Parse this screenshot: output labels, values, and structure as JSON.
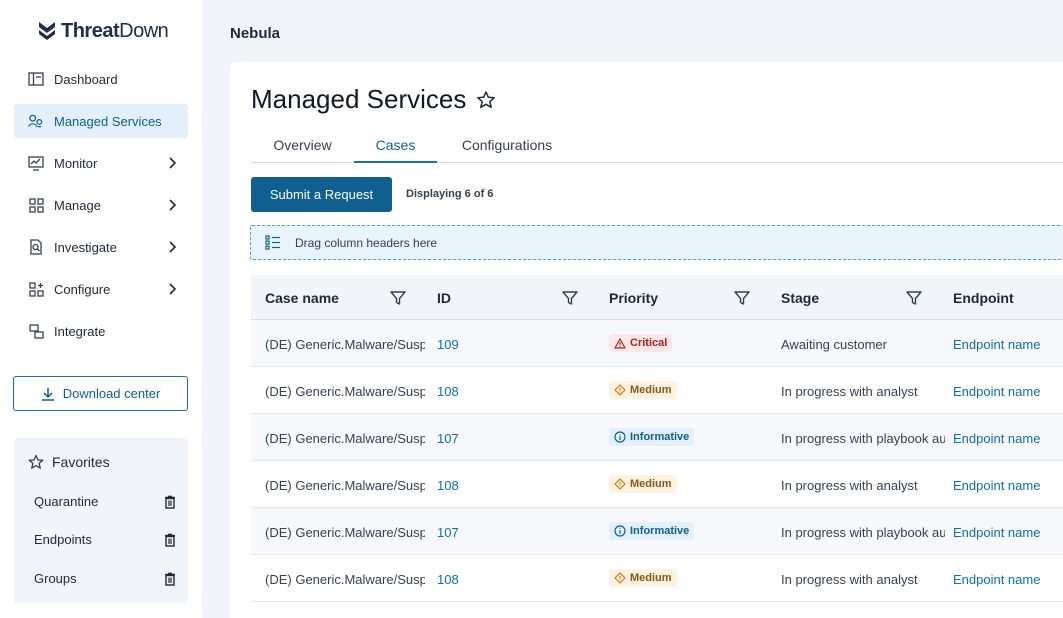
{
  "brand": {
    "name_bold": "Threat",
    "name_light": "Down"
  },
  "sidebar": {
    "items": [
      {
        "label": "Dashboard",
        "icon": "dashboard-icon",
        "active": false,
        "expandable": false
      },
      {
        "label": "Managed Services",
        "icon": "managed-services-icon",
        "active": true,
        "expandable": false
      },
      {
        "label": "Monitor",
        "icon": "monitor-icon",
        "active": false,
        "expandable": true
      },
      {
        "label": "Manage",
        "icon": "manage-grid-icon",
        "active": false,
        "expandable": true
      },
      {
        "label": "Investigate",
        "icon": "investigate-icon",
        "active": false,
        "expandable": true
      },
      {
        "label": "Configure",
        "icon": "configure-icon",
        "active": false,
        "expandable": true
      },
      {
        "label": "Integrate",
        "icon": "integrate-icon",
        "active": false,
        "expandable": false
      }
    ],
    "download_label": "Download center",
    "favorites": {
      "title": "Favorites",
      "items": [
        {
          "label": "Quarantine"
        },
        {
          "label": "Endpoints"
        },
        {
          "label": "Groups"
        }
      ]
    }
  },
  "header": {
    "title": "Nebula"
  },
  "main": {
    "title": "Managed Services",
    "tabs": [
      {
        "label": "Overview",
        "active": false
      },
      {
        "label": "Cases",
        "active": true
      },
      {
        "label": "Configurations",
        "active": false
      }
    ],
    "submit_label": "Submit a Request",
    "displaying": "Displaying 6 of 6",
    "drag_hint": "Drag column headers here"
  },
  "table": {
    "columns": [
      "Case name",
      "ID",
      "Priority",
      "Stage",
      "Endpoint"
    ],
    "rows": [
      {
        "case": "(DE) Generic.Malware/Suspi",
        "id": "109",
        "priority": "Critical",
        "level": "critical",
        "stage": "Awaiting customer",
        "endpoint": "Endpoint name"
      },
      {
        "case": "(DE) Generic.Malware/Suspi",
        "id": "108",
        "priority": "Medium",
        "level": "medium",
        "stage": "In progress with analyst",
        "endpoint": "Endpoint name"
      },
      {
        "case": "(DE) Generic.Malware/Suspi",
        "id": "107",
        "priority": "Informative",
        "level": "info",
        "stage": "In progress with playbook au",
        "endpoint": "Endpoint name"
      },
      {
        "case": "(DE) Generic.Malware/Suspi",
        "id": "108",
        "priority": "Medium",
        "level": "medium",
        "stage": "In progress with analyst",
        "endpoint": "Endpoint name"
      },
      {
        "case": "(DE) Generic.Malware/Suspi",
        "id": "107",
        "priority": "Informative",
        "level": "info",
        "stage": "In progress with playbook au",
        "endpoint": "Endpoint name"
      },
      {
        "case": "(DE) Generic.Malware/Suspi",
        "id": "108",
        "priority": "Medium",
        "level": "medium",
        "stage": "In progress with analyst",
        "endpoint": "Endpoint name"
      }
    ]
  },
  "colors": {
    "accent": "#0f5f91",
    "link": "#0f6fa8",
    "critical": "#b91c1c",
    "medium": "#d97706"
  }
}
